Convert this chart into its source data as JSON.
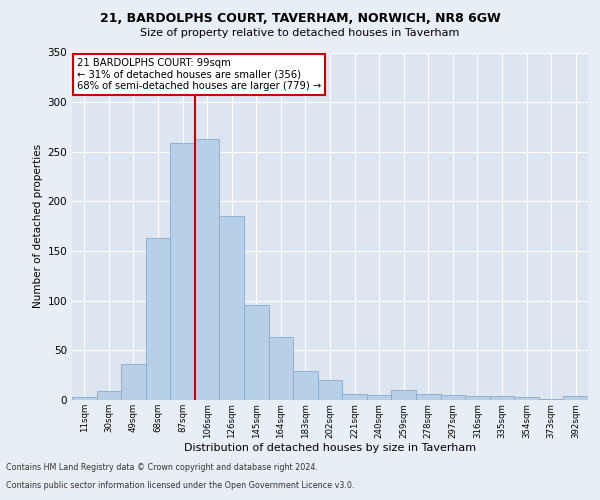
{
  "title1": "21, BARDOLPHS COURT, TAVERHAM, NORWICH, NR8 6GW",
  "title2": "Size of property relative to detached houses in Taverham",
  "xlabel": "Distribution of detached houses by size in Taverham",
  "ylabel": "Number of detached properties",
  "categories": [
    "11sqm",
    "30sqm",
    "49sqm",
    "68sqm",
    "87sqm",
    "106sqm",
    "126sqm",
    "145sqm",
    "164sqm",
    "183sqm",
    "202sqm",
    "221sqm",
    "240sqm",
    "259sqm",
    "278sqm",
    "297sqm",
    "316sqm",
    "335sqm",
    "354sqm",
    "373sqm",
    "392sqm"
  ],
  "values": [
    3,
    9,
    36,
    163,
    259,
    263,
    185,
    96,
    63,
    29,
    20,
    6,
    5,
    10,
    6,
    5,
    4,
    4,
    3,
    1,
    4
  ],
  "bar_color": "#b8cfe8",
  "bar_edge_color": "#88aacc",
  "vline_x": 4.5,
  "vline_color": "#cc0000",
  "annotation_title": "21 BARDOLPHS COURT: 99sqm",
  "annotation_line1": "← 31% of detached houses are smaller (356)",
  "annotation_line2": "68% of semi-detached houses are larger (779) →",
  "annotation_box_color": "#ffffff",
  "annotation_box_edge": "#cc0000",
  "footer1": "Contains HM Land Registry data © Crown copyright and database right 2024.",
  "footer2": "Contains public sector information licensed under the Open Government Licence v3.0.",
  "background_color": "#dde6f0",
  "fig_background_color": "#e8eef5",
  "ylim": [
    0,
    350
  ],
  "yticks": [
    0,
    50,
    100,
    150,
    200,
    250,
    300,
    350
  ],
  "grid_color": "#ffffff"
}
